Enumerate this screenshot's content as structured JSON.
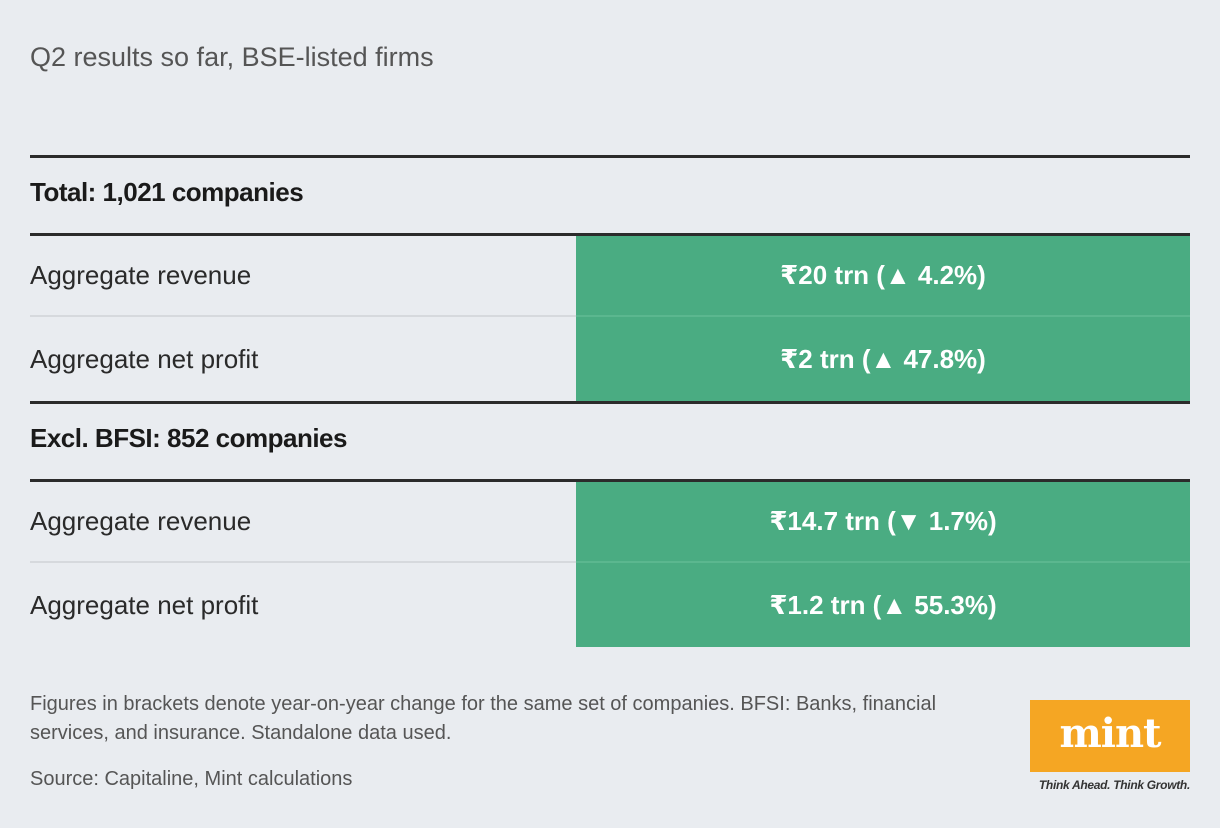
{
  "chart_data": {
    "type": "table",
    "title": "Q2 results so far, BSE-listed firms",
    "sections": [
      {
        "header": "Total: 1,021 companies",
        "rows": [
          {
            "label": "Aggregate revenue",
            "value": "₹20 trn (▲ 4.2%)",
            "amount_trn": 20,
            "yoy_change_pct": 4.2
          },
          {
            "label": "Aggregate net profit",
            "value": "₹2 trn (▲ 47.8%)",
            "amount_trn": 2,
            "yoy_change_pct": 47.8
          }
        ]
      },
      {
        "header": "Excl. BFSI: 852 companies",
        "rows": [
          {
            "label": "Aggregate revenue",
            "value": "₹14.7 trn (▼ 1.7%)",
            "amount_trn": 14.7,
            "yoy_change_pct": -1.7
          },
          {
            "label": "Aggregate net profit",
            "value": "₹1.2 trn (▲ 55.3%)",
            "amount_trn": 1.2,
            "yoy_change_pct": 55.3
          }
        ]
      }
    ],
    "note": "Figures in brackets denote year-on-year change for the same set of companies. BFSI: Banks, financial services, and insurance. Standalone data used.",
    "source": "Source: Capitaline, Mint calculations"
  },
  "brand": {
    "logo_text": "mint",
    "tagline": "Think Ahead. Think Growth.",
    "logo_color": "#f5a623"
  },
  "colors": {
    "background": "#e9ecf0",
    "value_cell": "#4aac82",
    "rule": "#2b2b2b"
  }
}
